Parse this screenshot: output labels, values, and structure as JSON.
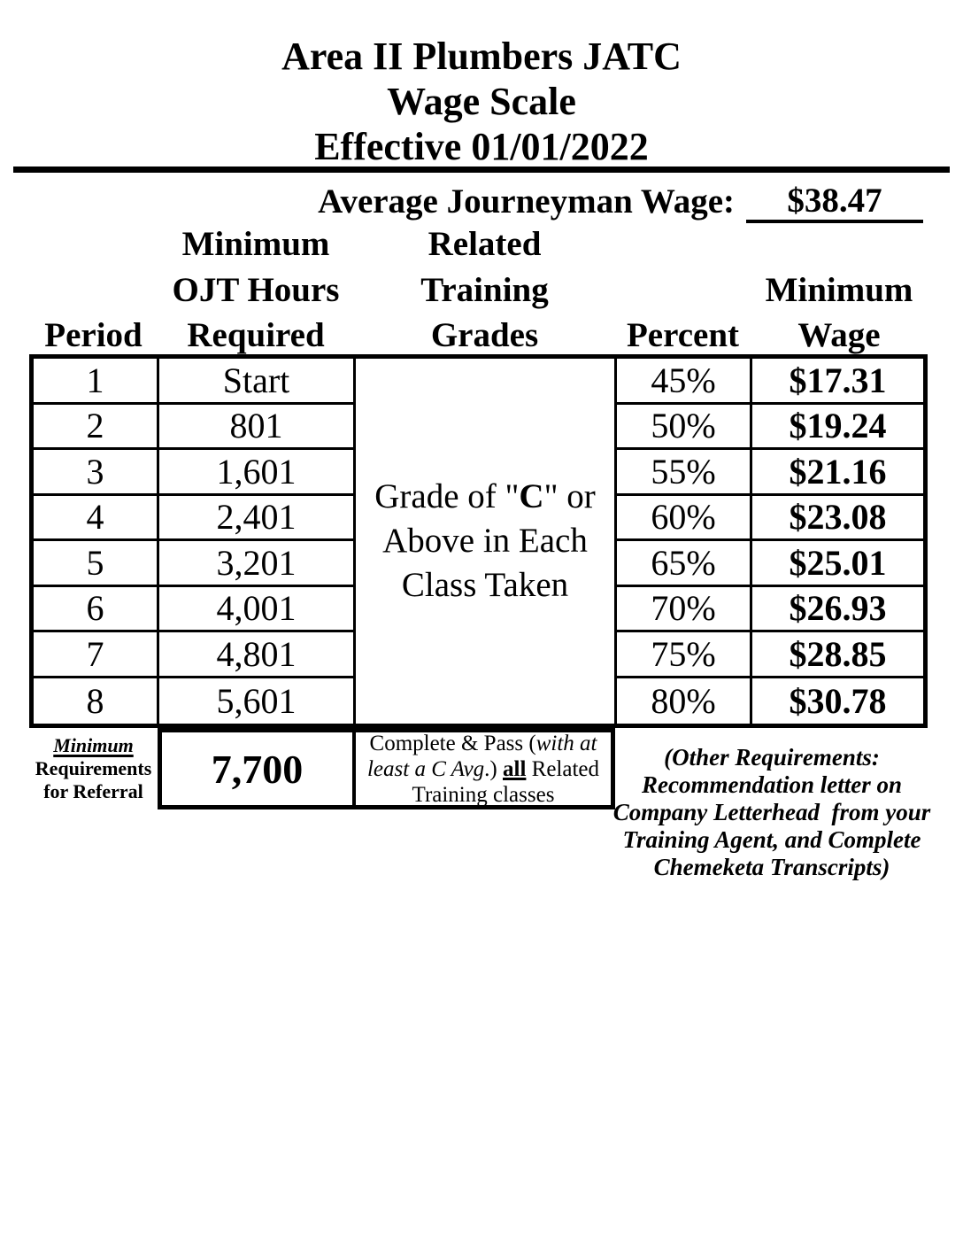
{
  "document": {
    "title_lines": [
      "Area II Plumbers JATC",
      "Wage Scale",
      "Effective 01/01/2022"
    ],
    "average_wage": {
      "label": "Average Journeyman Wage:",
      "value": "$38.47"
    }
  },
  "table": {
    "headers": {
      "period": "Period",
      "ojt_line1": "Minimum",
      "ojt_line2": "OJT Hours",
      "ojt_line3": "Required",
      "grades_line1": "Related",
      "grades_line2": "Training",
      "grades_line3": "Grades",
      "percent": "Percent",
      "wage_line1": "Minimum",
      "wage_line2": "Wage"
    },
    "grades_cell": {
      "l1a": "Grade of \"",
      "l1b": "C",
      "l1c": "\" or",
      "l2": "Above in Each",
      "l3": "Class Taken"
    },
    "rows": [
      {
        "period": "1",
        "ojt": "Start",
        "percent": "45%",
        "wage": "$17.31"
      },
      {
        "period": "2",
        "ojt": "801",
        "percent": "50%",
        "wage": "$19.24"
      },
      {
        "period": "3",
        "ojt": "1,601",
        "percent": "55%",
        "wage": "$21.16"
      },
      {
        "period": "4",
        "ojt": "2,401",
        "percent": "60%",
        "wage": "$23.08"
      },
      {
        "period": "5",
        "ojt": "3,201",
        "percent": "65%",
        "wage": "$25.01"
      },
      {
        "period": "6",
        "ojt": "4,001",
        "percent": "70%",
        "wage": "$26.93"
      },
      {
        "period": "7",
        "ojt": "4,801",
        "percent": "75%",
        "wage": "$28.85"
      },
      {
        "period": "8",
        "ojt": "5,601",
        "percent": "80%",
        "wage": "$30.78"
      }
    ]
  },
  "referral": {
    "label_line1": "Minimum",
    "label_line2": "Requirements",
    "label_line3": "for Referral",
    "ojt_hours": "7,700",
    "training_req": {
      "l1a": "Complete & Pass (",
      "l1b": "with at",
      "l2a": "least a C Avg",
      "l2b": ".) ",
      "l2c": "all",
      "l2d": " Related",
      "l3": "Training classes"
    },
    "other_requirements": [
      "(Other Requirements:",
      "Recommendation letter on",
      "Company Letterhead  from your",
      "Training Agent, and Complete",
      "Chemeketa Transcripts)"
    ]
  }
}
